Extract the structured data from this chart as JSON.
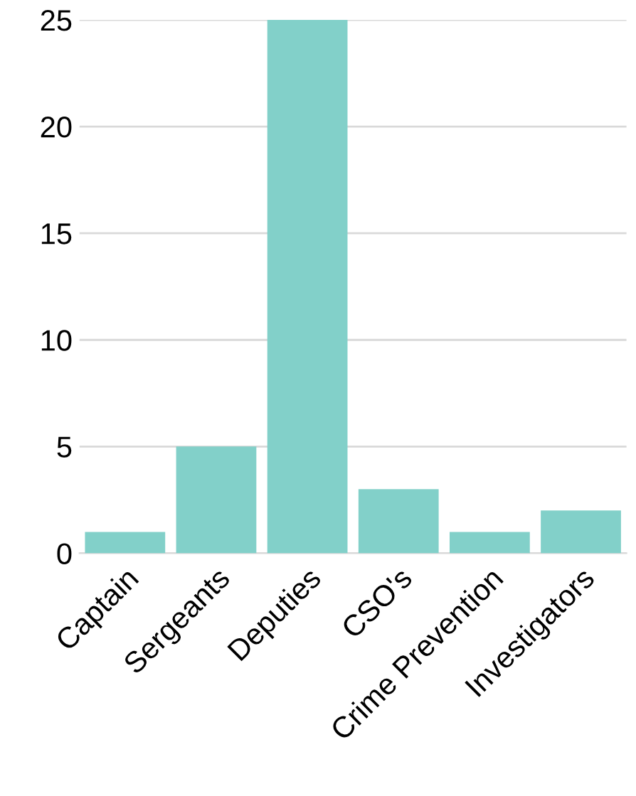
{
  "chart_data": {
    "type": "bar",
    "categories": [
      "Captain",
      "Sergeants",
      "Deputies",
      "CSO's",
      "Crime Prevention",
      "Investigators"
    ],
    "values": [
      1,
      5,
      25,
      3,
      1,
      2
    ],
    "color": "#82d0c9",
    "ylim": [
      0,
      25
    ],
    "yticks": [
      0,
      5,
      10,
      15,
      20,
      25
    ],
    "grid": "y"
  }
}
